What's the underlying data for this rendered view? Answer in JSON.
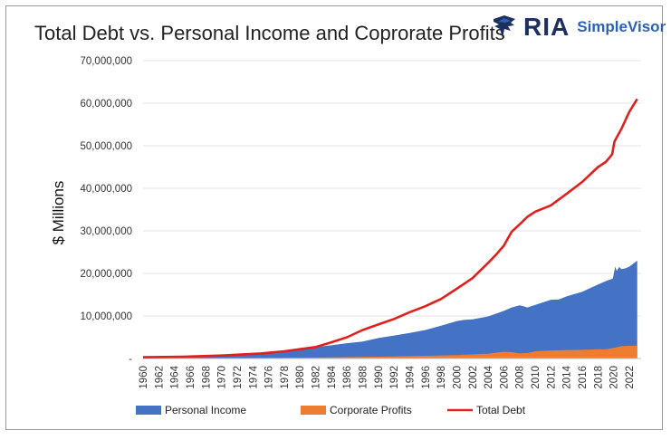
{
  "brand": {
    "name": "RIA",
    "product": "SimpleVisor",
    "colors": {
      "navy": "#1c2f5e",
      "blue": "#2b60b8"
    }
  },
  "chart_data": {
    "type": "area",
    "title": "Total Debt vs. Personal Income and Coprorate Profits",
    "xlabel": "",
    "ylabel": "$ Millions",
    "ylim": [
      0,
      70000000
    ],
    "yticks": [
      0,
      10000000,
      20000000,
      30000000,
      40000000,
      50000000,
      60000000,
      70000000
    ],
    "ytick_labels": [
      "-",
      "10,000,000",
      "20,000,000",
      "30,000,000",
      "40,000,000",
      "50,000,000",
      "60,000,000",
      "70,000,000"
    ],
    "xlim": [
      1960,
      2023.5
    ],
    "xtick_labels": [
      "1960",
      "1962",
      "1964",
      "1966",
      "1968",
      "1970",
      "1972",
      "1974",
      "1976",
      "1978",
      "1980",
      "1982",
      "1984",
      "1986",
      "1988",
      "1990",
      "1992",
      "1994",
      "1996",
      "1998",
      "2000",
      "2002",
      "2004",
      "2006",
      "2008",
      "2010",
      "2012",
      "2014",
      "2016",
      "2018",
      "2020",
      "2022"
    ],
    "grid": true,
    "legend_position": "bottom",
    "series": [
      {
        "name": "Personal Income",
        "kind": "area",
        "color": "#4472c4",
        "x": [
          1960,
          1965,
          1970,
          1975,
          1980,
          1982,
          1984,
          1986,
          1988,
          1990,
          1992,
          1994,
          1996,
          1998,
          2000,
          2001,
          2002,
          2004,
          2006,
          2007,
          2008,
          2008.5,
          2009,
          2010,
          2012,
          2013,
          2014,
          2016,
          2018,
          2019,
          2019.9,
          2020.2,
          2020.4,
          2020.7,
          2021,
          2021.5,
          2022,
          2023
        ],
        "values": [
          400000,
          540000,
          840000,
          1300000,
          2300000,
          2700000,
          3100000,
          3600000,
          4000000,
          4800000,
          5400000,
          6000000,
          6700000,
          7700000,
          8800000,
          9100000,
          9200000,
          9900000,
          11200000,
          12000000,
          12500000,
          12300000,
          12000000,
          12600000,
          13800000,
          13900000,
          14600000,
          15700000,
          17400000,
          18200000,
          18800000,
          21600000,
          20600000,
          21500000,
          21000000,
          21200000,
          21600000,
          23000000
        ]
      },
      {
        "name": "Corporate Profits",
        "kind": "area",
        "color": "#ed7d31",
        "x": [
          1960,
          1970,
          1980,
          1990,
          2000,
          2004,
          2006,
          2007,
          2008,
          2009,
          2010,
          2012,
          2014,
          2016,
          2018,
          2019,
          2020,
          2021,
          2022,
          2023
        ],
        "values": [
          50000,
          80000,
          200000,
          420000,
          800000,
          1150000,
          1600000,
          1500000,
          1200000,
          1300000,
          1700000,
          1900000,
          2000000,
          2050000,
          2200000,
          2200000,
          2500000,
          2900000,
          3000000,
          3000000
        ]
      },
      {
        "name": "Total Debt",
        "kind": "line",
        "color": "#e0201c",
        "x": [
          1960,
          1965,
          1970,
          1975,
          1978,
          1980,
          1982,
          1984,
          1986,
          1988,
          1990,
          1992,
          1994,
          1996,
          1998,
          2000,
          2002,
          2004,
          2005,
          2006,
          2007,
          2008,
          2009,
          2010,
          2012,
          2014,
          2016,
          2018,
          2019,
          2019.5,
          2019.8,
          2020.1,
          2021,
          2022,
          2023
        ],
        "values": [
          300000,
          400000,
          700000,
          1200000,
          1700000,
          2200000,
          2700000,
          3800000,
          5000000,
          6700000,
          8000000,
          9300000,
          10900000,
          12300000,
          14000000,
          16400000,
          18900000,
          22500000,
          24400000,
          26500000,
          29800000,
          31500000,
          33300000,
          34500000,
          36000000,
          38700000,
          41500000,
          45000000,
          46200000,
          47300000,
          48000000,
          51000000,
          54000000,
          58000000,
          61000000
        ]
      }
    ]
  }
}
